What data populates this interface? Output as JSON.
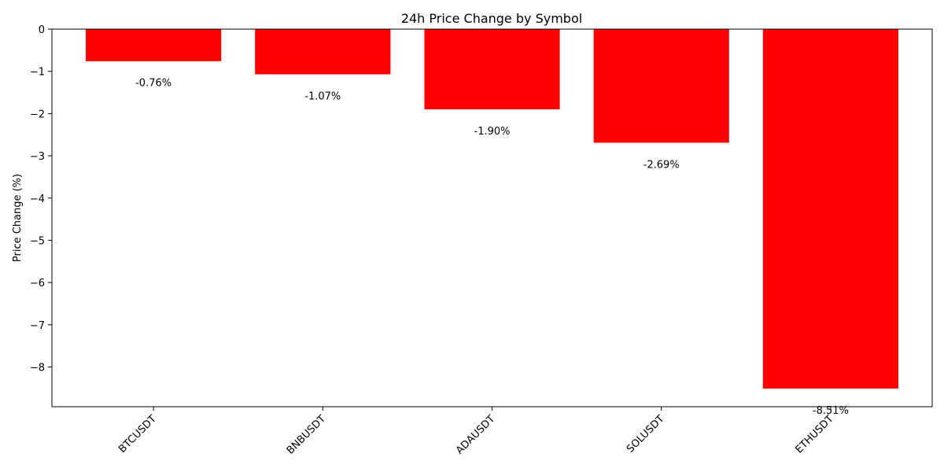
{
  "chart_data": {
    "type": "bar",
    "title": "24h Price Change by Symbol",
    "xlabel": "",
    "ylabel": "Price Change (%)",
    "categories": [
      "BTCUSDT",
      "BNBUSDT",
      "ADAUSDT",
      "SOLUSDT",
      "ETHUSDT"
    ],
    "values": [
      -0.76,
      -1.07,
      -1.9,
      -2.69,
      -8.51
    ],
    "data_labels": [
      "-0.76%",
      "-1.07%",
      "-1.90%",
      "-2.69%",
      "-8.51%"
    ],
    "ylim": [
      -8.94,
      0
    ],
    "yticks": [
      0,
      -1,
      -2,
      -3,
      -4,
      -5,
      -6,
      -7,
      -8
    ],
    "ytick_labels": [
      "0",
      "−1",
      "−2",
      "−3",
      "−4",
      "−5",
      "−6",
      "−7",
      "−8"
    ],
    "bar_color": "#ff0000",
    "grid": false,
    "legend": "none"
  }
}
